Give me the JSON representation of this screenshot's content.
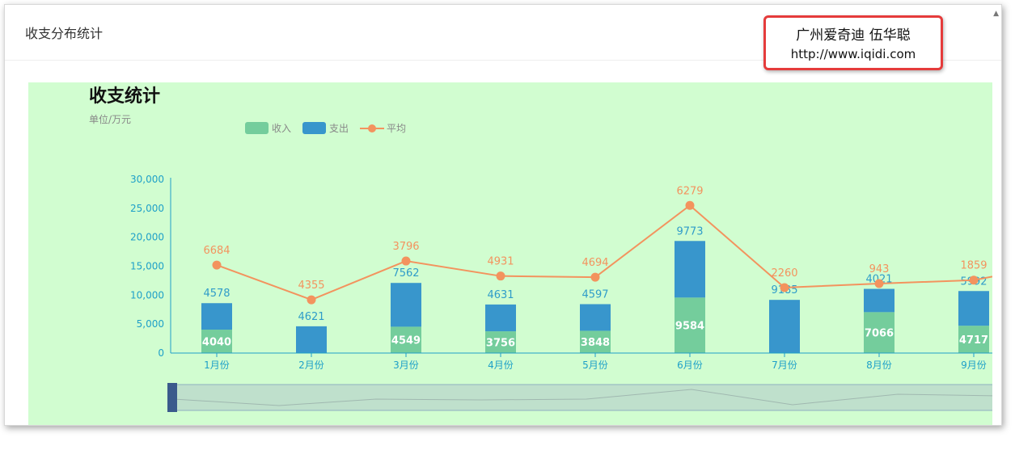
{
  "panel": {
    "title": "收支分布统计"
  },
  "watermark": {
    "line1": "广州爱奇迪 伍华聪",
    "line2": "http://www.iqidi.com"
  },
  "colors": {
    "income": "#74cd9c",
    "expense": "#3896cc",
    "average": "#f3935e",
    "background": "#d1fdd0"
  },
  "chart_data": {
    "type": "bar",
    "title": "收支统计",
    "subtitle": "单位/万元",
    "legend": [
      "收入",
      "支出",
      "平均"
    ],
    "legend_position": "top",
    "categories": [
      "1月份",
      "2月份",
      "3月份",
      "4月份",
      "5月份",
      "6月份",
      "7月份",
      "8月份",
      "9月份"
    ],
    "series": [
      {
        "name": "收入",
        "type": "bar",
        "stack": true,
        "values": [
          4040,
          0,
          4549,
          3756,
          3848,
          9584,
          0,
          7066,
          4717
        ]
      },
      {
        "name": "支出",
        "type": "bar",
        "stack": true,
        "values": [
          4578,
          4621,
          7562,
          4631,
          4597,
          9773,
          9185,
          4021,
          5992
        ]
      },
      {
        "name": "平均",
        "type": "line",
        "values": [
          6684,
          4355,
          3796,
          4931,
          4694,
          6279,
          2260,
          943,
          1859
        ],
        "plot_position": [
          15200,
          9200,
          15900,
          13300,
          13100,
          25500,
          11300,
          12000,
          12600
        ]
      }
    ],
    "y_ticks": [
      "0",
      "5,000",
      "10,000",
      "15,000",
      "20,000",
      "25,000",
      "30,000"
    ],
    "ylim": [
      0,
      30000
    ],
    "grid": false,
    "data_zoom": true
  }
}
